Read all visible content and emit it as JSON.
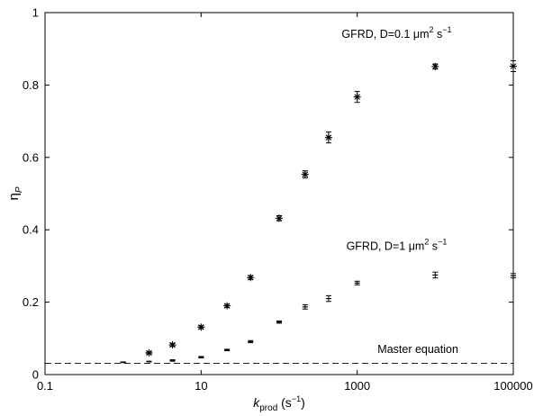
{
  "chart_data": {
    "type": "scatter",
    "x_scale": "log",
    "xlim": [
      0.1,
      100000
    ],
    "ylim": [
      0,
      1
    ],
    "grid": false,
    "xlabel": {
      "italic": "k",
      "sub": "prod",
      "unit": " (s",
      "unit_sup": "−1",
      "unit_end": ")"
    },
    "ylabel": {
      "main": "η",
      "sub": "P"
    },
    "x_ticks": [
      {
        "value": 0.1,
        "label": "0.1"
      },
      {
        "value": 10,
        "label": "10"
      },
      {
        "value": 1000,
        "label": "1000"
      },
      {
        "value": 100000,
        "label": "100000"
      }
    ],
    "y_ticks": [
      {
        "value": 0,
        "label": "0"
      },
      {
        "value": 0.2,
        "label": "0.2"
      },
      {
        "value": 0.4,
        "label": "0.4"
      },
      {
        "value": 0.6,
        "label": "0.6"
      },
      {
        "value": 0.8,
        "label": "0.8"
      },
      {
        "value": 1,
        "label": "1"
      }
    ],
    "series": [
      {
        "marker": "asterisk",
        "label": {
          "pre": "GFRD, D=0.1 ",
          "mu": "μ",
          "mid": "m",
          "sup1": "2",
          "mid2": " s",
          "sup2": "−1"
        },
        "label_anchor": {
          "x": 3200,
          "y": 0.93
        },
        "points": [
          {
            "x": 2.15,
            "y": 0.06,
            "err": 0.003
          },
          {
            "x": 4.3,
            "y": 0.082,
            "err": 0.004
          },
          {
            "x": 10,
            "y": 0.131,
            "err": 0.004
          },
          {
            "x": 21.5,
            "y": 0.19,
            "err": 0.004
          },
          {
            "x": 43,
            "y": 0.268,
            "err": 0.005
          },
          {
            "x": 100,
            "y": 0.432,
            "err": 0.007
          },
          {
            "x": 215,
            "y": 0.553,
            "err": 0.01
          },
          {
            "x": 430,
            "y": 0.655,
            "err": 0.015
          },
          {
            "x": 1000,
            "y": 0.767,
            "err": 0.015
          },
          {
            "x": 10000,
            "y": 0.851,
            "err": 0.007
          },
          {
            "x": 100000,
            "y": 0.852,
            "err": 0.015
          }
        ]
      },
      {
        "marker": "errorbar",
        "label": {
          "pre": "GFRD, D=1 ",
          "mu": "μ",
          "mid": "m",
          "sup1": "2",
          "mid2": " s",
          "sup2": "−1"
        },
        "label_anchor": {
          "x": 3200,
          "y": 0.345
        },
        "points": [
          {
            "x": 1,
            "y": 0.034,
            "err": 0.001
          },
          {
            "x": 2.15,
            "y": 0.036,
            "err": 0.001
          },
          {
            "x": 4.3,
            "y": 0.039,
            "err": 0.002
          },
          {
            "x": 10,
            "y": 0.048,
            "err": 0.002
          },
          {
            "x": 21.5,
            "y": 0.068,
            "err": 0.002
          },
          {
            "x": 43,
            "y": 0.091,
            "err": 0.003
          },
          {
            "x": 100,
            "y": 0.145,
            "err": 0.003
          },
          {
            "x": 215,
            "y": 0.187,
            "err": 0.006
          },
          {
            "x": 430,
            "y": 0.21,
            "err": 0.008
          },
          {
            "x": 1000,
            "y": 0.253,
            "err": 0.005
          },
          {
            "x": 10000,
            "y": 0.275,
            "err": 0.008
          },
          {
            "x": 100000,
            "y": 0.273,
            "err": 0.006
          }
        ]
      }
    ],
    "master_line": {
      "label": "Master equation",
      "label_anchor": {
        "x": 6000,
        "y": 0.06
      },
      "style": "dashed",
      "y": 0.031
    }
  }
}
